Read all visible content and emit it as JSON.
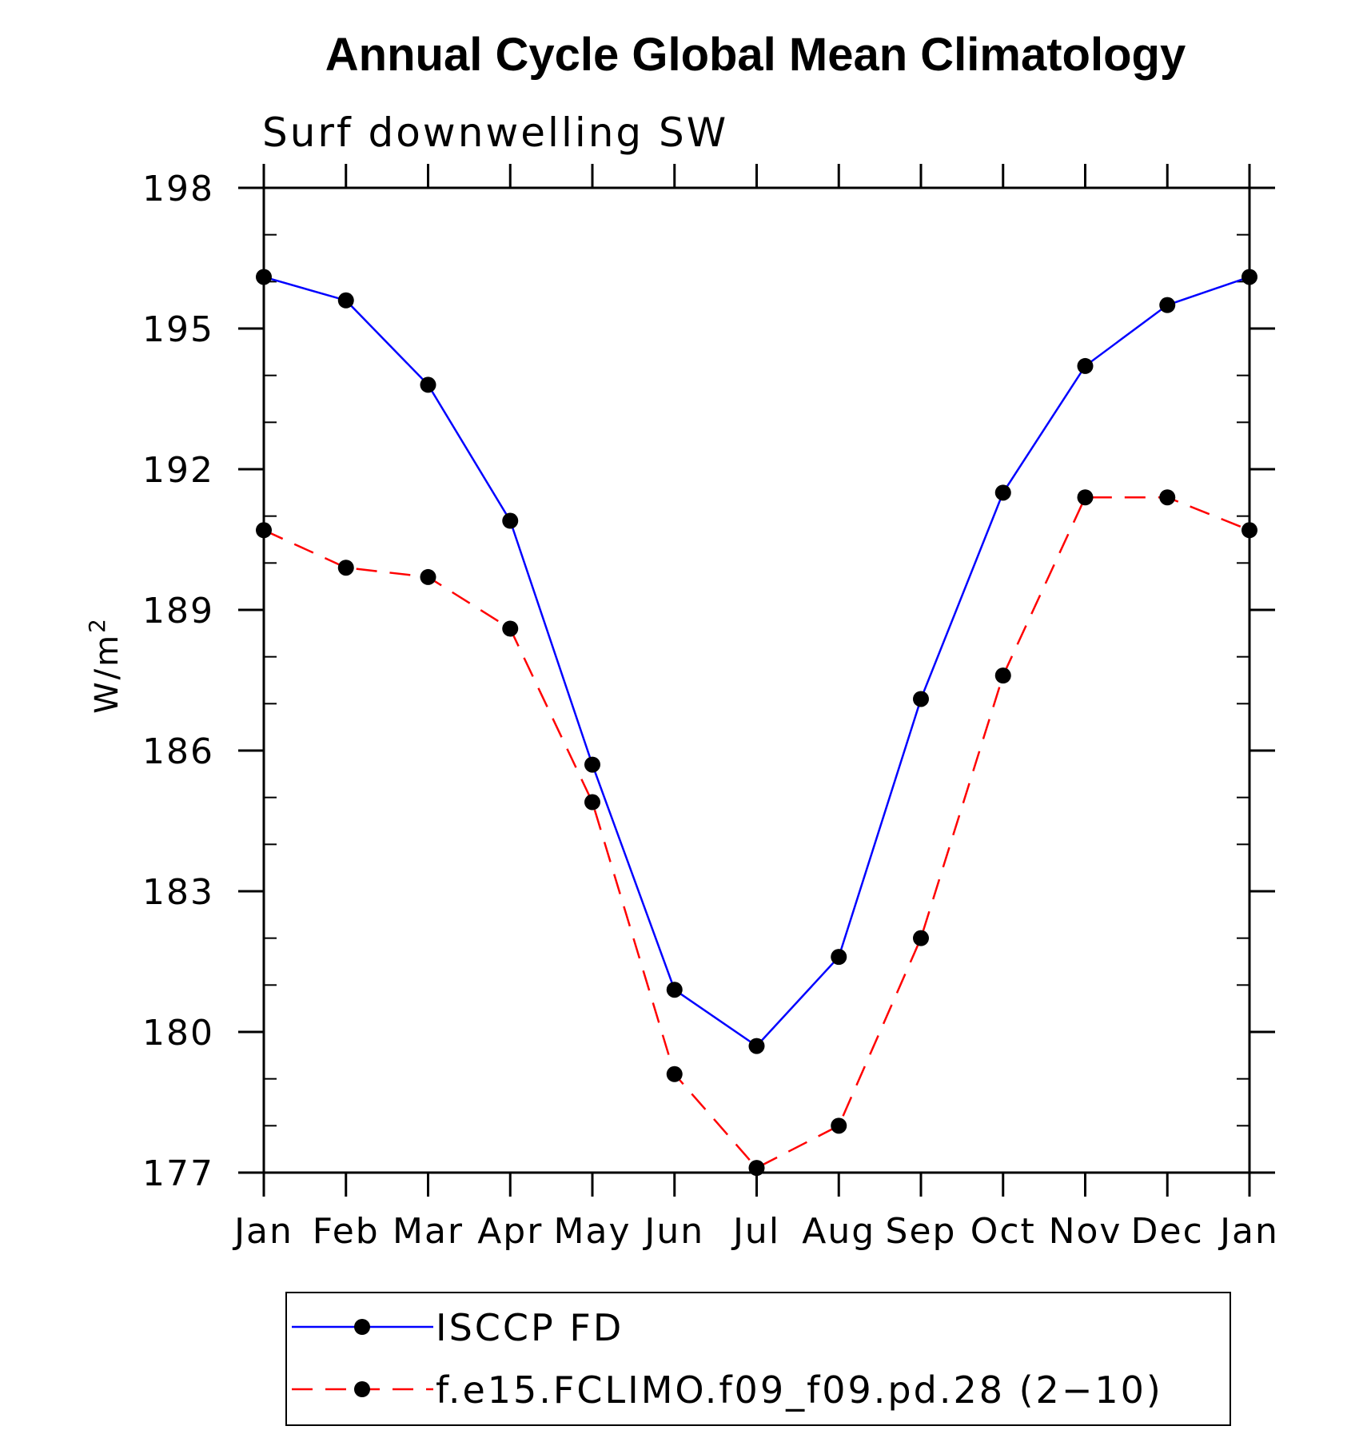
{
  "chart_data": {
    "type": "line",
    "title": "Annual Cycle Global Mean Climatology",
    "subtitle": "Surf downwelling SW",
    "ylabel": "W/m",
    "ylabel_superscript": "2",
    "categories": [
      "Jan",
      "Feb",
      "Mar",
      "Apr",
      "May",
      "Jun",
      "Jul",
      "Aug",
      "Sep",
      "Oct",
      "Nov",
      "Dec",
      "Jan"
    ],
    "ylim": [
      177,
      198
    ],
    "yticks": [
      177,
      180,
      183,
      186,
      189,
      192,
      195,
      198
    ],
    "ytick_labels": [
      "177",
      "180",
      "183",
      "186",
      "189",
      "192",
      "195",
      "198"
    ],
    "legend_position": "bottom",
    "series": [
      {
        "name": "ISCCP FD",
        "color": "#0000ff",
        "dash": "solid",
        "marker": "filled-circle",
        "values": [
          196.1,
          195.6,
          193.8,
          190.9,
          185.7,
          180.9,
          179.7,
          181.6,
          187.1,
          191.5,
          194.2,
          195.5,
          196.1
        ]
      },
      {
        "name": "f.e15.FCLIMO.f09_f09.pd.28 (2−10)",
        "color": "#ff0000",
        "dash": "dashed",
        "marker": "filled-circle",
        "values": [
          190.7,
          189.9,
          189.7,
          188.6,
          184.9,
          179.1,
          177.1,
          178.0,
          182.0,
          187.6,
          191.4,
          191.4,
          190.7
        ]
      }
    ]
  }
}
